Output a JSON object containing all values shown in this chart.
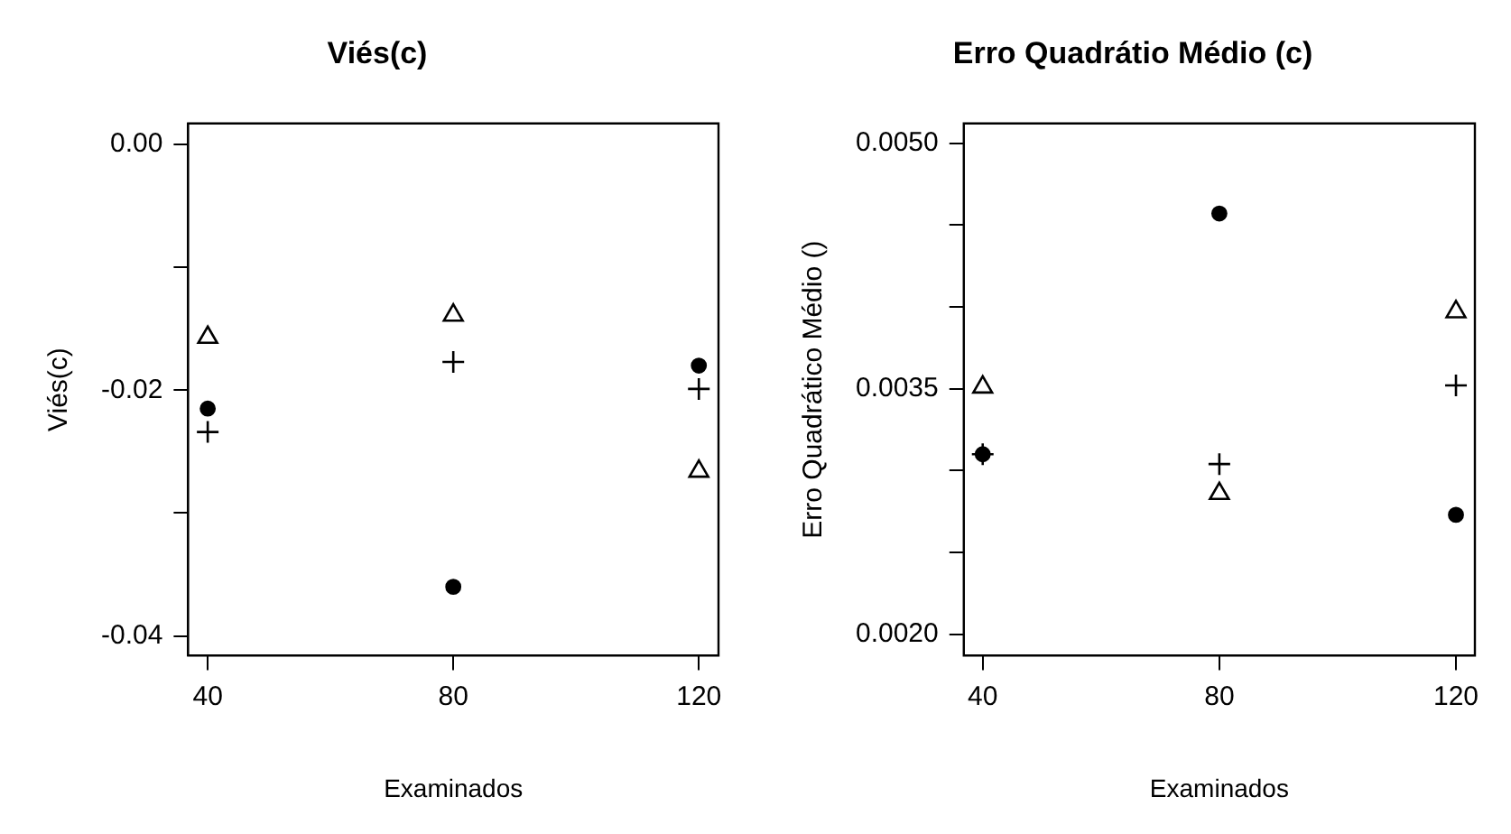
{
  "chart_data": [
    {
      "type": "scatter",
      "title": "Viés(c)",
      "xlabel": "Examinados",
      "ylabel": "Viés(c)",
      "x": [
        40,
        80,
        120
      ],
      "xlim": [
        36.8,
        123.2
      ],
      "xticks": [
        40,
        80,
        120
      ],
      "ylim": [
        -0.0416,
        0.0017
      ],
      "yticks": [
        {
          "value": -0.04,
          "label": "-0.04"
        },
        {
          "value": -0.03,
          "label": null
        },
        {
          "value": -0.02,
          "label": "-0.02"
        },
        {
          "value": -0.01,
          "label": null
        },
        {
          "value": 0,
          "label": "0.00"
        }
      ],
      "grid": false,
      "legend": false,
      "series": [
        {
          "color": "#000000",
          "marker": "circle",
          "values": [
            -0.0215,
            -0.036,
            -0.018
          ]
        },
        {
          "color": "#000000",
          "marker": "cross",
          "values": [
            -0.0234,
            -0.0177,
            -0.0199
          ]
        },
        {
          "color": "#000000",
          "marker": "triangle",
          "values": [
            -0.0157,
            -0.0139,
            -0.0266
          ]
        }
      ]
    },
    {
      "type": "scatter",
      "title": "Erro Quadrátio Médio (c)",
      "xlabel": "Examinados",
      "ylabel": "Erro Quadrático Médio ()",
      "x": [
        40,
        80,
        120
      ],
      "xlim": [
        36.8,
        123.2
      ],
      "xticks": [
        40,
        80,
        120
      ],
      "ylim": [
        0.00187,
        0.00512
      ],
      "yticks": [
        {
          "value": 0.002,
          "label": "0.0020"
        },
        {
          "value": 0.0025,
          "label": null
        },
        {
          "value": 0.003,
          "label": null
        },
        {
          "value": 0.0035,
          "label": "0.0035"
        },
        {
          "value": 0.004,
          "label": null
        },
        {
          "value": 0.0045,
          "label": null
        },
        {
          "value": 0.005,
          "label": "0.0050"
        }
      ],
      "grid": false,
      "legend": false,
      "series": [
        {
          "color": "#000000",
          "marker": "circle",
          "values": [
            0.0031,
            0.00457,
            0.00273
          ]
        },
        {
          "color": "#000000",
          "marker": "cross",
          "values": [
            0.0031,
            0.00304,
            0.00352
          ]
        },
        {
          "color": "#000000",
          "marker": "triangle",
          "values": [
            0.00351,
            0.00286,
            0.00397
          ]
        }
      ]
    }
  ]
}
